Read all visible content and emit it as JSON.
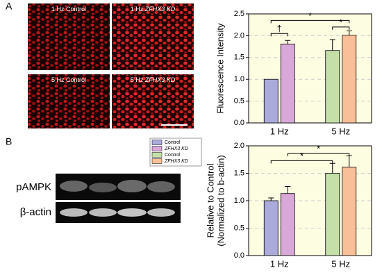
{
  "panels": [
    "A",
    "B"
  ],
  "images": [
    {
      "label": "1 Hz Control"
    },
    {
      "label": "1 Hz",
      "italic": "ZFHX3 KD"
    },
    {
      "label": "5 Hz Control"
    },
    {
      "label": "5 Hz",
      "italic": "ZFHX3 KD"
    }
  ],
  "blot": {
    "labels": [
      "pAMPK",
      "β-actin"
    ]
  },
  "chart_data": [
    {
      "type": "bar",
      "ylabel": [
        "Fluorescence Intensity"
      ],
      "categories": [
        "1 Hz",
        "5 Hz"
      ],
      "series": [
        {
          "color": "#aaaadb",
          "values": [
            1.0,
            null
          ],
          "errors": [
            0,
            null
          ]
        },
        {
          "color": "#d8a8d8",
          "values": [
            1.81,
            null
          ],
          "errors": [
            0.08,
            null
          ]
        },
        {
          "color": "#c4e0a8",
          "values": [
            null,
            1.66
          ],
          "errors": [
            null,
            0.25
          ]
        },
        {
          "color": "#f8bf98",
          "values": [
            null,
            2.01
          ],
          "errors": [
            null,
            0.1
          ]
        }
      ],
      "ylim": [
        0,
        2.5
      ],
      "yticks": [
        {
          "value": 0,
          "label": "0.0"
        },
        0.5,
        {
          "value": 1,
          "label": "1.0"
        },
        1.5,
        {
          "value": 2,
          "label": "2.0"
        },
        2.5
      ],
      "grid": true,
      "annotations": [
        {
          "text": "†",
          "y": 2.05,
          "between": [
            0,
            1
          ]
        },
        {
          "text": "*",
          "y": 2.35,
          "between": [
            0,
            3
          ]
        },
        {
          "text": "*",
          "y": 2.2,
          "between": [
            2,
            3
          ]
        }
      ]
    },
    {
      "type": "bar",
      "ylabel": [
        "Relative to Control",
        "(Normalized to b-actin)"
      ],
      "categories": [
        "1 Hz",
        "5 Hz"
      ],
      "series": [
        {
          "name": "Control",
          "color": "#aaaadb",
          "values": [
            1.0,
            null
          ],
          "errors": [
            0.05,
            null
          ]
        },
        {
          "name": "ZFHX3 KD",
          "color": "#d8a8d8",
          "values": [
            1.13,
            null
          ],
          "errors": [
            0.13,
            null
          ]
        },
        {
          "name": "Control",
          "color": "#c4e0a8",
          "values": [
            null,
            1.5
          ],
          "errors": [
            null,
            0.18
          ]
        },
        {
          "name": "ZFHX3 KD",
          "color": "#f8bf98",
          "values": [
            null,
            1.61
          ],
          "errors": [
            null,
            0.21
          ]
        }
      ],
      "ylim": [
        0,
        2
      ],
      "yticks": [
        {
          "value": 0,
          "label": "0.0"
        },
        0.5,
        {
          "value": 1,
          "label": "1.0"
        },
        1.5,
        {
          "value": 2,
          "label": "2.0"
        }
      ],
      "grid": true,
      "annotations": [
        {
          "text": "*",
          "y": 1.73,
          "between": [
            0,
            2
          ]
        },
        {
          "text": "*",
          "y": 1.86,
          "between": [
            1,
            3
          ]
        }
      ]
    }
  ]
}
